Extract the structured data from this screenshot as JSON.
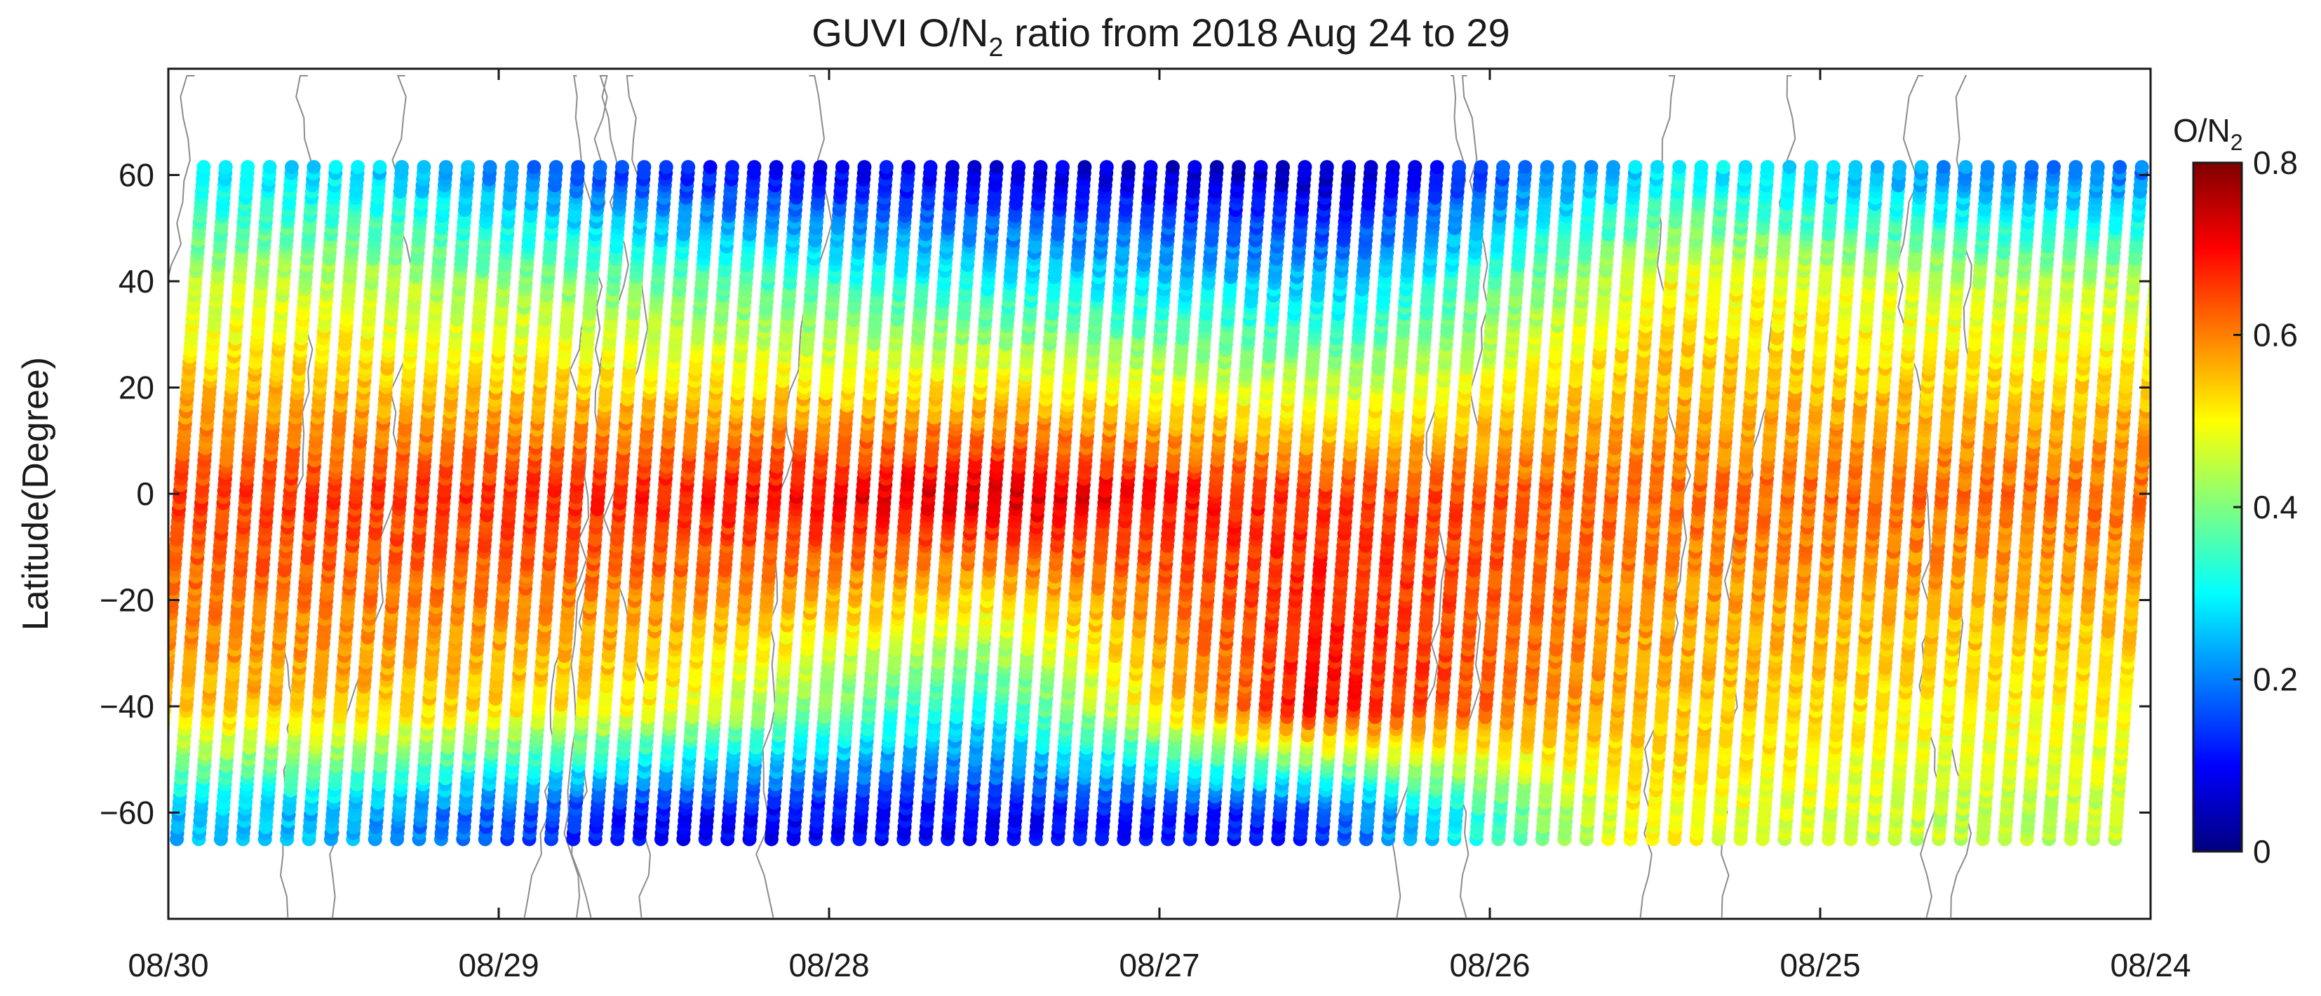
{
  "chart_data": {
    "type": "scatter",
    "title_main": "GUVI O/N",
    "title_sub": "2",
    "title_rest": " ratio from 2018 Aug 24 to 29",
    "ylabel": "Latitude(Degree)",
    "xlabel": "",
    "x_ticks": [
      "08/30",
      "08/29",
      "08/28",
      "08/27",
      "08/26",
      "08/25",
      "08/24"
    ],
    "x_range_days": [
      0,
      6
    ],
    "x_direction": "reversed",
    "ylim": [
      -80,
      80
    ],
    "y_ticks": [
      60,
      40,
      20,
      0,
      -20,
      -40,
      -60
    ],
    "y_tick_labels": [
      "60",
      "40",
      "20",
      "0",
      "−20",
      "−40",
      "−60"
    ],
    "lat_range": [
      -65,
      62
    ],
    "colorbar": {
      "title_main": "O/N",
      "title_sub": "2",
      "range": [
        0,
        0.8
      ],
      "ticks": [
        0,
        0.2,
        0.4,
        0.6,
        0.8
      ],
      "tick_labels": [
        "0",
        "0.2",
        "0.4",
        "0.6",
        "0.8"
      ],
      "colormap": "jet",
      "colors": [
        "#00007f",
        "#0000ff",
        "#007fff",
        "#00ffff",
        "#7fff7f",
        "#ffff00",
        "#ff7f00",
        "#ff0000",
        "#7f0000"
      ]
    },
    "orbit_tracks": {
      "count": 90,
      "ratio_profile_by_day": [
        {
          "day": "08/29",
          "north_60": 0.28,
          "mid_40": 0.45,
          "equator": 0.66,
          "south_40": 0.55,
          "south_60": 0.25
        },
        {
          "day": "08/28",
          "north_60": 0.12,
          "mid_40": 0.38,
          "equator": 0.68,
          "south_40": 0.5,
          "south_60": 0.1
        },
        {
          "day": "08/27",
          "north_60": 0.08,
          "mid_40": 0.3,
          "equator": 0.74,
          "south_40": 0.3,
          "south_60": 0.1
        },
        {
          "day": "08/26",
          "north_60": 0.05,
          "mid_40": 0.25,
          "equator": 0.66,
          "south_40": 0.7,
          "south_60": 0.12
        },
        {
          "day": "08/25",
          "north_60": 0.3,
          "mid_40": 0.5,
          "equator": 0.62,
          "south_40": 0.55,
          "south_60": 0.5
        },
        {
          "day": "08/24",
          "north_60": 0.2,
          "mid_40": 0.45,
          "equator": 0.62,
          "south_40": 0.5,
          "south_60": 0.45
        }
      ]
    },
    "grid": false,
    "legend": "colorbar-right"
  }
}
